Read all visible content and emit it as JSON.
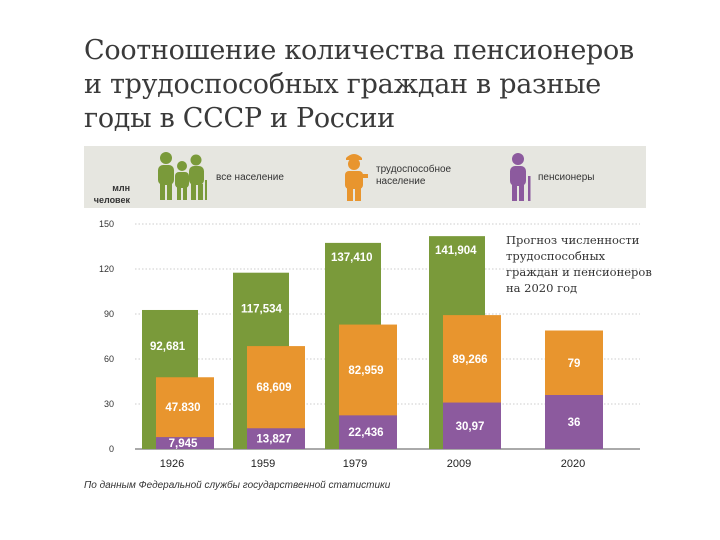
{
  "title_lines": [
    "Соотношение количества пенсионеров",
    "и трудоспособных граждан в разные",
    "годы в СССР и России"
  ],
  "unit_lines": [
    "млн",
    "человек"
  ],
  "legend": [
    {
      "label": "все население",
      "color": "#7a9a3a",
      "icon": "people-group-icon"
    },
    {
      "label": "трудоспособное население",
      "color": "#e8952e",
      "icon": "worker-icon"
    },
    {
      "label": "пенсионеры",
      "color": "#8c5a9e",
      "icon": "pensioner-icon"
    }
  ],
  "forecast_note": "Прогноз численности трудоспособных граждан и пенсионеров на 2020 год",
  "footnote": "По данным Федеральной службы государственной статистики",
  "chart_data": {
    "type": "bar",
    "categories": [
      "1926",
      "1959",
      "1979",
      "2009",
      "2020"
    ],
    "ylim": [
      0,
      150
    ],
    "yticks": [
      0,
      30,
      60,
      90,
      120,
      150
    ],
    "grid": true,
    "series": [
      {
        "name": "все население",
        "color": "#7a9a3a",
        "values": [
          92.681,
          117.534,
          137.41,
          141.904,
          null
        ],
        "labels": [
          "92,681",
          "117,534",
          "137,410",
          "141,904",
          ""
        ]
      },
      {
        "name": "трудоспособное население",
        "color": "#e8952e",
        "values": [
          47.83,
          68.609,
          82.959,
          89.266,
          79
        ],
        "labels": [
          "47.830",
          "68,609",
          "82,959",
          "89,266",
          "79"
        ]
      },
      {
        "name": "пенсионеры",
        "color": "#8c5a9e",
        "values": [
          7.945,
          13.827,
          22.436,
          30.97,
          36
        ],
        "labels": [
          "7,945",
          "13,827",
          "22,436",
          "30,97",
          "36"
        ]
      }
    ]
  }
}
